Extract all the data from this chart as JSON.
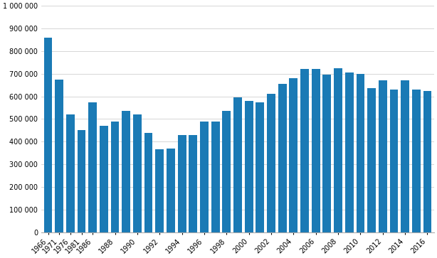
{
  "years_list": [
    1966,
    1971,
    1976,
    1981,
    1986,
    1987,
    1988,
    1989,
    1990,
    1991,
    1992,
    1993,
    1994,
    1995,
    1996,
    1997,
    1998,
    1999,
    2000,
    2001,
    2002,
    2003,
    2004,
    2005,
    2006,
    2007,
    2008,
    2009,
    2010,
    2011,
    2012,
    2013,
    2014,
    2015,
    2016
  ],
  "values": [
    860000,
    675000,
    520000,
    450000,
    575000,
    470000,
    490000,
    535000,
    520000,
    440000,
    365000,
    370000,
    430000,
    430000,
    490000,
    490000,
    535000,
    595000,
    580000,
    575000,
    610000,
    655000,
    680000,
    720000,
    720000,
    695000,
    725000,
    705000,
    700000,
    635000,
    670000,
    630000,
    670000,
    630000,
    623000
  ],
  "bar_color": "#1a7ab5",
  "ylim": [
    0,
    1000000
  ],
  "ytick_vals": [
    0,
    100000,
    200000,
    300000,
    400000,
    500000,
    600000,
    700000,
    800000,
    900000,
    1000000
  ],
  "ytick_labels": [
    "0",
    "100 000",
    "200 000",
    "300 000",
    "400 000",
    "500 000",
    "600 000",
    "700 000",
    "800 000",
    "900 000",
    "1 000 000"
  ],
  "xtick_years": [
    1966,
    1971,
    1976,
    1981,
    1986,
    1988,
    1990,
    1992,
    1994,
    1996,
    1998,
    2000,
    2002,
    2004,
    2006,
    2008,
    2010,
    2012,
    2014,
    2016
  ],
  "background_color": "#ffffff",
  "grid_color": "#d0d0d0"
}
